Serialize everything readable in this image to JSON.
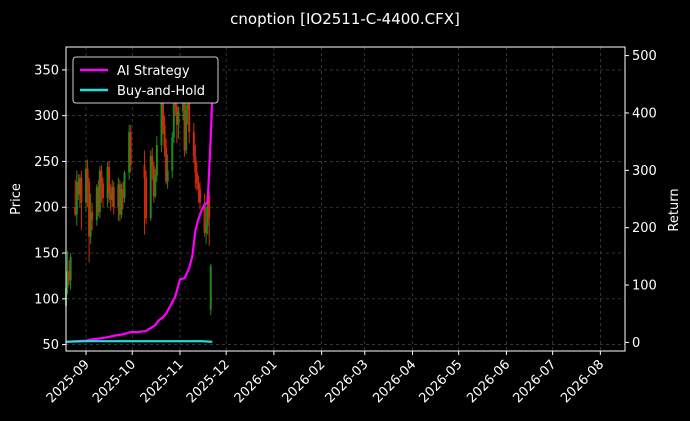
{
  "chart_data": {
    "type": "line",
    "title": "cnoption [IO2511-C-4400.CFX]",
    "xlabel": "",
    "ylabel_left": "Price",
    "ylabel_right": "Return",
    "x_ticks": [
      "2025-09",
      "2025-10",
      "2025-11",
      "2025-12",
      "2026-01",
      "2026-02",
      "2026-03",
      "2026-04",
      "2026-05",
      "2026-06",
      "2026-07",
      "2026-08"
    ],
    "y_left_ticks": [
      50,
      100,
      150,
      200,
      250,
      300,
      350
    ],
    "y_right_ticks": [
      0,
      100,
      200,
      300,
      400,
      500
    ],
    "ylim_left": [
      43,
      375
    ],
    "ylim_right": [
      -15,
      515
    ],
    "xlim": [
      "2025-08-19",
      "2026-08-17"
    ],
    "grid": true,
    "legend_position": "top-left",
    "series": [
      {
        "name": "AI Strategy",
        "axis": "right",
        "color": "#ff00ff",
        "points": [
          [
            "2025-08-19",
            1
          ],
          [
            "2025-08-25",
            2
          ],
          [
            "2025-09-01",
            3
          ],
          [
            "2025-09-05",
            5
          ],
          [
            "2025-09-10",
            7
          ],
          [
            "2025-09-15",
            9
          ],
          [
            "2025-09-20",
            12
          ],
          [
            "2025-09-25",
            14
          ],
          [
            "2025-09-30",
            18
          ],
          [
            "2025-10-05",
            18
          ],
          [
            "2025-10-10",
            20
          ],
          [
            "2025-10-13",
            25
          ],
          [
            "2025-10-16",
            30
          ],
          [
            "2025-10-18",
            38
          ],
          [
            "2025-10-21",
            44
          ],
          [
            "2025-10-23",
            50
          ],
          [
            "2025-10-25",
            60
          ],
          [
            "2025-10-27",
            70
          ],
          [
            "2025-10-29",
            80
          ],
          [
            "2025-11-01",
            110
          ],
          [
            "2025-11-04",
            112
          ],
          [
            "2025-11-07",
            130
          ],
          [
            "2025-11-09",
            150
          ],
          [
            "2025-11-11",
            195
          ],
          [
            "2025-11-13",
            215
          ],
          [
            "2025-11-15",
            230
          ],
          [
            "2025-11-17",
            240
          ],
          [
            "2025-11-19",
            245
          ],
          [
            "2025-11-21",
            360
          ],
          [
            "2025-11-22",
            430
          ]
        ]
      },
      {
        "name": "Buy-and-Hold",
        "axis": "right",
        "color": "#22e0e0",
        "points": [
          [
            "2025-08-19",
            1
          ],
          [
            "2025-09-01",
            2
          ],
          [
            "2025-09-15",
            2
          ],
          [
            "2025-10-01",
            2
          ],
          [
            "2025-10-15",
            2
          ],
          [
            "2025-11-01",
            2
          ],
          [
            "2025-11-15",
            2
          ],
          [
            "2025-11-22",
            1
          ]
        ]
      }
    ],
    "candles": {
      "axis": "left",
      "up_color": "#1e8a1e",
      "down_color": "#d42a0a",
      "items": [
        [
          "2025-08-19",
          92,
          112,
          89,
          120
        ],
        [
          "2025-08-20",
          112,
          130,
          105,
          152
        ],
        [
          "2025-08-21",
          130,
          120,
          115,
          142
        ],
        [
          "2025-08-22",
          120,
          146,
          110,
          150
        ],
        [
          "2025-08-25",
          200,
          192,
          190,
          230
        ],
        [
          "2025-08-26",
          192,
          228,
          180,
          240
        ],
        [
          "2025-08-27",
          228,
          214,
          208,
          236
        ],
        [
          "2025-08-28",
          214,
          232,
          200,
          236
        ],
        [
          "2025-08-29",
          232,
          205,
          175,
          240
        ],
        [
          "2025-09-01",
          205,
          242,
          195,
          252
        ],
        [
          "2025-09-02",
          242,
          228,
          200,
          252
        ],
        [
          "2025-09-03",
          228,
          168,
          140,
          232
        ],
        [
          "2025-09-04",
          168,
          195,
          160,
          215
        ],
        [
          "2025-09-05",
          195,
          186,
          175,
          205
        ],
        [
          "2025-09-08",
          186,
          222,
          180,
          225
        ],
        [
          "2025-09-09",
          222,
          195,
          190,
          230
        ],
        [
          "2025-09-10",
          195,
          240,
          188,
          245
        ],
        [
          "2025-09-11",
          240,
          226,
          205,
          246
        ],
        [
          "2025-09-12",
          226,
          210,
          200,
          232
        ],
        [
          "2025-09-15",
          210,
          244,
          200,
          250
        ],
        [
          "2025-09-16",
          244,
          215,
          205,
          250
        ],
        [
          "2025-09-17",
          215,
          208,
          196,
          225
        ],
        [
          "2025-09-18",
          208,
          222,
          200,
          230
        ],
        [
          "2025-09-19",
          222,
          200,
          192,
          228
        ],
        [
          "2025-09-22",
          200,
          225,
          185,
          232
        ],
        [
          "2025-09-23",
          225,
          192,
          185,
          230
        ],
        [
          "2025-09-24",
          192,
          220,
          188,
          226
        ],
        [
          "2025-09-25",
          220,
          210,
          198,
          228
        ],
        [
          "2025-09-26",
          210,
          238,
          205,
          240
        ],
        [
          "2025-09-29",
          238,
          282,
          230,
          290
        ],
        [
          "2025-09-30",
          282,
          246,
          238,
          290
        ],
        [
          "2025-10-09",
          246,
          232,
          170,
          262
        ],
        [
          "2025-10-10",
          232,
          188,
          182,
          240
        ],
        [
          "2025-10-13",
          188,
          256,
          185,
          262
        ],
        [
          "2025-10-14",
          256,
          245,
          230,
          265
        ],
        [
          "2025-10-15",
          245,
          212,
          205,
          250
        ],
        [
          "2025-10-16",
          212,
          235,
          210,
          242
        ],
        [
          "2025-10-17",
          235,
          268,
          228,
          278
        ],
        [
          "2025-10-20",
          268,
          315,
          260,
          320
        ],
        [
          "2025-10-21",
          315,
          290,
          280,
          320
        ],
        [
          "2025-10-22",
          290,
          265,
          255,
          300
        ],
        [
          "2025-10-23",
          265,
          228,
          225,
          275
        ],
        [
          "2025-10-24",
          228,
          240,
          220,
          258
        ],
        [
          "2025-10-27",
          240,
          276,
          232,
          282
        ],
        [
          "2025-10-28",
          276,
          330,
          270,
          338
        ],
        [
          "2025-10-29",
          330,
          310,
          300,
          352
        ],
        [
          "2025-10-30",
          310,
          290,
          270,
          335
        ],
        [
          "2025-10-31",
          290,
          305,
          275,
          310
        ],
        [
          "2025-11-03",
          305,
          320,
          295,
          326
        ],
        [
          "2025-11-04",
          320,
          262,
          255,
          325
        ],
        [
          "2025-11-05",
          262,
          306,
          258,
          312
        ],
        [
          "2025-11-06",
          306,
          318,
          290,
          324
        ],
        [
          "2025-11-07",
          318,
          282,
          270,
          325
        ],
        [
          "2025-11-10",
          282,
          256,
          248,
          292
        ],
        [
          "2025-11-11",
          256,
          238,
          220,
          268
        ],
        [
          "2025-11-12",
          238,
          226,
          218,
          250
        ],
        [
          "2025-11-13",
          226,
          220,
          205,
          235
        ],
        [
          "2025-11-14",
          220,
          205,
          198,
          228
        ],
        [
          "2025-11-17",
          205,
          172,
          168,
          215
        ],
        [
          "2025-11-18",
          172,
          180,
          160,
          200
        ],
        [
          "2025-11-19",
          180,
          212,
          170,
          215
        ],
        [
          "2025-11-20",
          212,
          188,
          158,
          218
        ],
        [
          "2025-11-21",
          88,
          136,
          82,
          138
        ]
      ]
    }
  },
  "legend": {
    "items": [
      {
        "label": "AI Strategy",
        "color": "#ff00ff"
      },
      {
        "label": "Buy-and-Hold",
        "color": "#22e0e0"
      }
    ]
  }
}
